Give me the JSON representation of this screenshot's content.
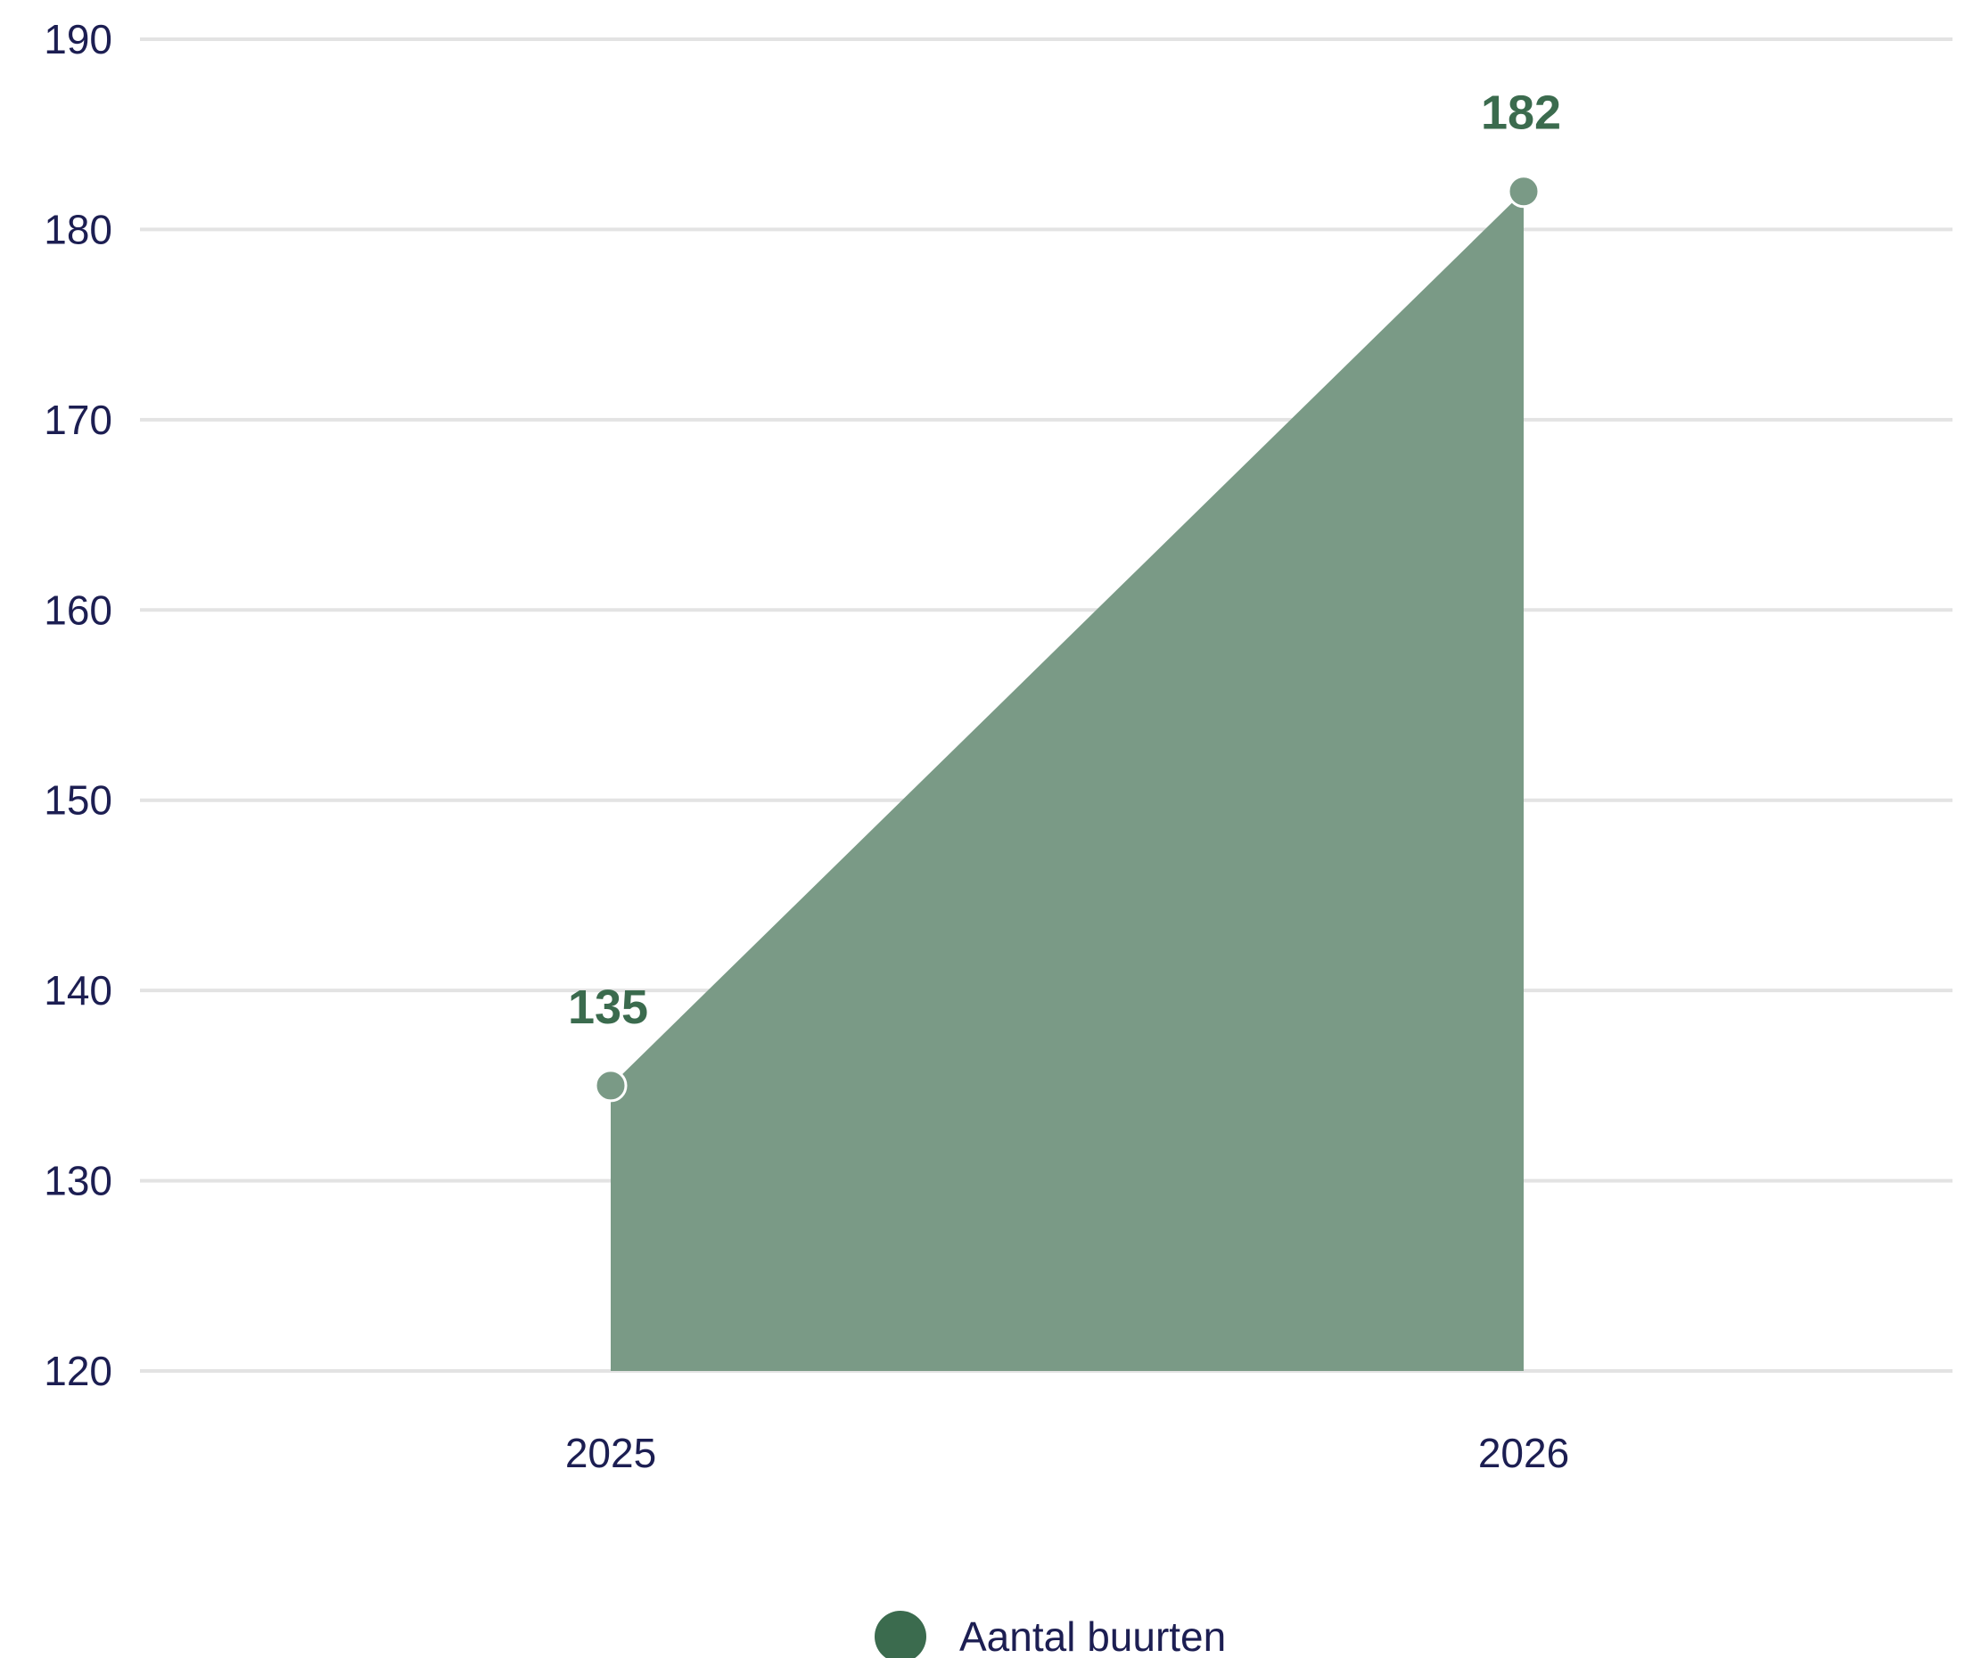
{
  "chart_data": {
    "type": "area",
    "categories": [
      "2025",
      "2026"
    ],
    "series": [
      {
        "name": "Aantal buurten",
        "values": [
          135,
          182
        ],
        "data_labels": [
          "135",
          "182"
        ]
      }
    ],
    "title": "",
    "xlabel": "",
    "ylabel": "",
    "ylim": [
      120,
      190
    ],
    "yticks": [
      "120",
      "130",
      "140",
      "150",
      "160",
      "170",
      "180",
      "190"
    ],
    "grid": true,
    "legend_position": "bottom-center"
  },
  "colors": {
    "series": "#3b6b4e",
    "area_fill": "#7a9a86",
    "grid": "#e3e3e3",
    "text": "#1c1e52",
    "marker_stroke": "#ffffff"
  }
}
